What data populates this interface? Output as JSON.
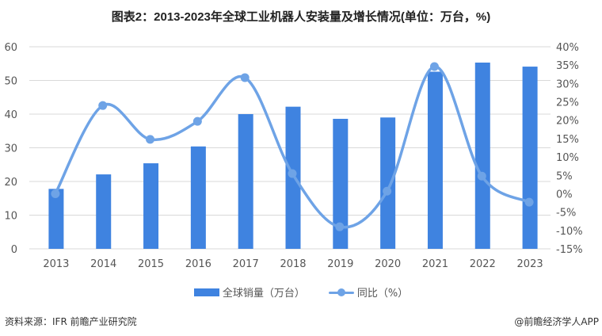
{
  "title": "图表2：2013-2023年全球工业机器人安装量及增长情况(单位：万台，%)",
  "colors": {
    "bar": "#3f83e0",
    "line": "#6ea3e6",
    "grid": "#d9d9d9"
  },
  "legend": {
    "bar_label": "全球销量（万台）",
    "line_label": "同比（%）"
  },
  "footer": {
    "source": "资料来源：IFR 前瞻产业研究院",
    "credit": "@前瞻经济学人APP"
  },
  "chart_data": {
    "type": "bar",
    "title": "图表2：2013-2023年全球工业机器人安装量及增长情况(单位：万台，%)",
    "xlabel": "",
    "ylabel": "",
    "categories": [
      "2013",
      "2014",
      "2015",
      "2016",
      "2017",
      "2018",
      "2019",
      "2020",
      "2021",
      "2022",
      "2023"
    ],
    "series": [
      {
        "name": "全球销量（万台）",
        "type": "bar",
        "axis": "left",
        "values": [
          17.8,
          22.1,
          25.4,
          30.4,
          40.0,
          42.2,
          38.6,
          39.0,
          52.6,
          55.3,
          54.1
        ]
      },
      {
        "name": "同比（%）",
        "type": "line",
        "axis": "right",
        "smooth": true,
        "values": [
          0.0,
          24.0,
          14.8,
          19.7,
          31.6,
          5.5,
          -9.0,
          0.7,
          34.6,
          4.8,
          -2.3
        ]
      }
    ],
    "ylim": [
      0,
      60
    ],
    "yticks": [
      "0",
      "10",
      "20",
      "30",
      "40",
      "50",
      "60"
    ],
    "y2lim": [
      -15,
      40
    ],
    "y2ticks": [
      "-15%",
      "-10%",
      "-5%",
      "0%",
      "5%",
      "10%",
      "15%",
      "20%",
      "25%",
      "30%",
      "35%",
      "40%"
    ],
    "grid": true,
    "legend_position": "bottom"
  }
}
